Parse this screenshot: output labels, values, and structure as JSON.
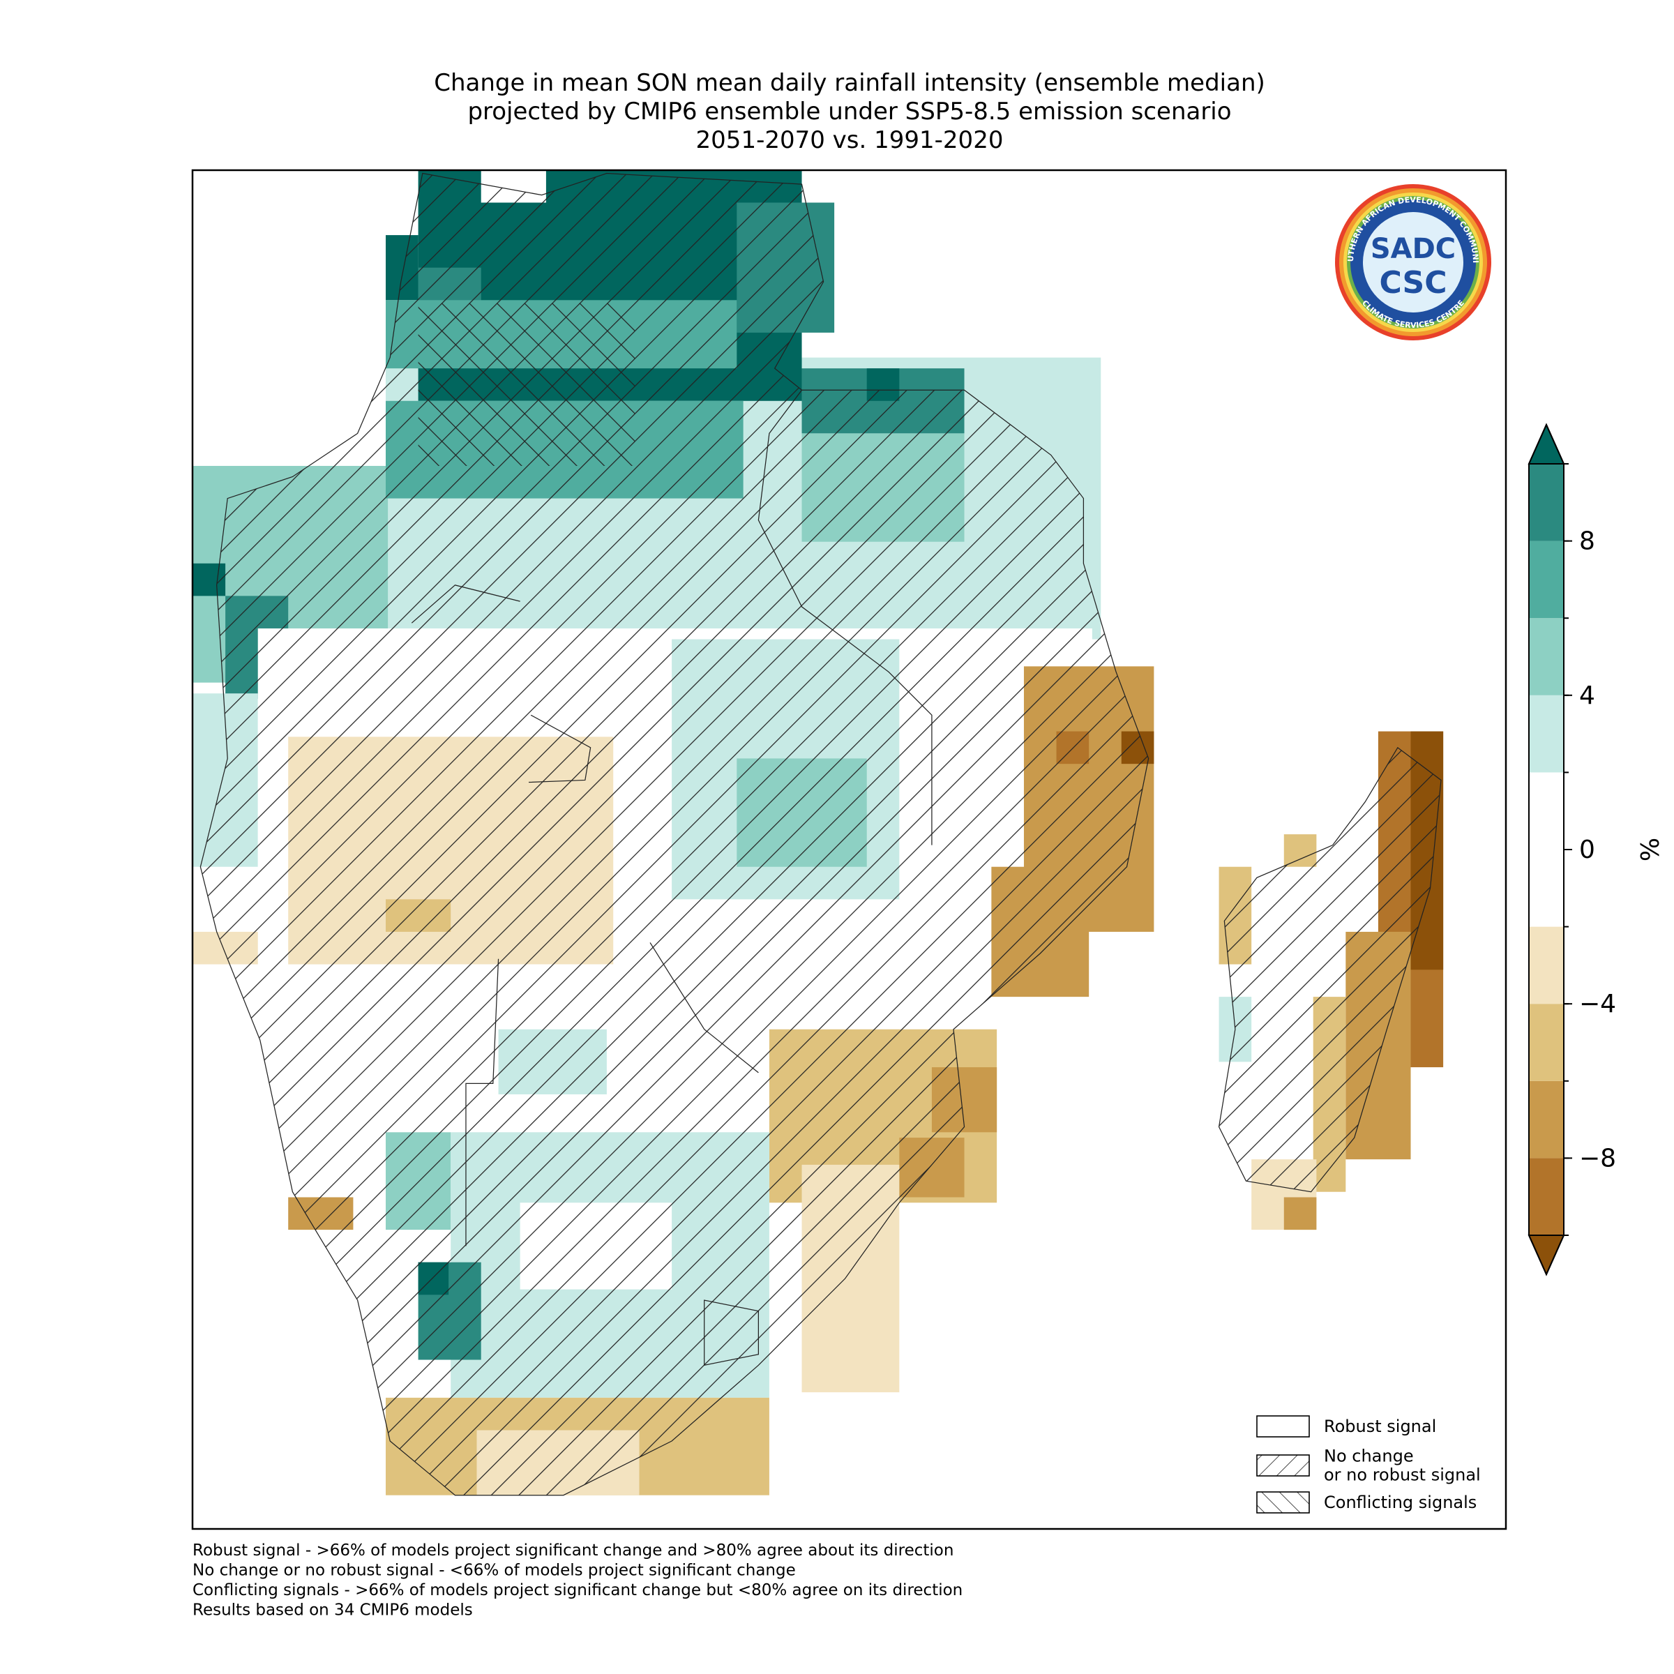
{
  "title_lines": [
    "Change in mean SON mean daily rainfall intensity (ensemble median)",
    "projected by CMIP6 ensemble under SSP5-8.5 emission scenario",
    "2051-2070 vs. 1991-2020"
  ],
  "colorbar": {
    "label": "%",
    "lim": [
      -10,
      10
    ],
    "levels": [
      -10,
      -8,
      -6,
      -4,
      -2,
      2,
      4,
      6,
      8,
      10
    ],
    "colors": [
      "#b2742a",
      "#c99a4c",
      "#dfc27d",
      "#f3e3c0",
      "#ffffff",
      "#c7eae5",
      "#8dd0c3",
      "#50ad9f",
      "#2b8a80"
    ],
    "extend_colors": {
      "below": "#8c510a",
      "above": "#01665e"
    },
    "ticks": [
      {
        "value": -8,
        "label": "−8"
      },
      {
        "value": -4,
        "label": "−4"
      },
      0,
      4,
      8
    ]
  },
  "legend": [
    {
      "lines": [
        "Robust signal"
      ],
      "hatch": "none"
    },
    {
      "lines": [
        "No change",
        "or no robust signal"
      ],
      "hatch": "forward"
    },
    {
      "lines": [
        "Conflicting signals"
      ],
      "hatch": "back"
    }
  ],
  "footnotes": [
    "Robust signal - >66% of models project significant change and >80% agree about its direction",
    "No change or no robust signal - <66% of models project significant change",
    "Conflicting signals - >66% of models project significant change but <80% agree on its direction",
    "Results based on 34 CMIP6 models"
  ],
  "logo": {
    "top_text": "SOUTHERN AFRICAN DEVELOPMENT COMMUNITY",
    "bottom_text": "CLIMATE SERVICES CENTRE",
    "name": "SADC",
    "unit": "CSC"
  }
}
